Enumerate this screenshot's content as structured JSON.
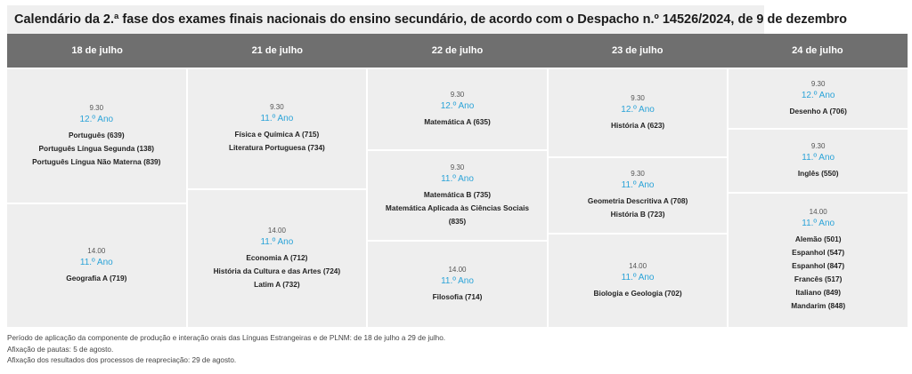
{
  "title": "Calendário da 2.ª fase dos exames finais nacionais do ensino secundário, de acordo com o Despacho n.º 14526/2024, de 9 de dezembro",
  "columns": [
    {
      "date": "18 de julho",
      "blocks": [
        {
          "time": "9.30",
          "year": "12.º Ano",
          "exams": [
            "Português (639)",
            "Português Língua Segunda (138)",
            "Português Língua Não Materna (839)"
          ]
        },
        {
          "time": "14.00",
          "year": "11.º Ano",
          "exams": [
            "Geografia A (719)"
          ]
        }
      ]
    },
    {
      "date": "21 de julho",
      "blocks": [
        {
          "time": "9.30",
          "year": "11.º Ano",
          "exams": [
            "Física e Química A (715)",
            "Literatura Portuguesa (734)"
          ]
        },
        {
          "time": "14.00",
          "year": "11.º Ano",
          "exams": [
            "Economia A (712)",
            "História da Cultura e das Artes (724)",
            "Latim A (732)"
          ]
        }
      ]
    },
    {
      "date": "22 de julho",
      "blocks": [
        {
          "time": "9.30",
          "year": "12.º Ano",
          "exams": [
            "Matemática A (635)"
          ]
        },
        {
          "time": "9.30",
          "year": "11.º Ano",
          "exams": [
            "Matemática B (735)",
            "Matemática Aplicada às Ciências Sociais",
            "(835)"
          ]
        },
        {
          "time": "14.00",
          "year": "11.º Ano",
          "exams": [
            "Filosofia (714)"
          ]
        }
      ]
    },
    {
      "date": "23 de julho",
      "blocks": [
        {
          "time": "9.30",
          "year": "12.º Ano",
          "exams": [
            "História A (623)"
          ]
        },
        {
          "time": "9.30",
          "year": "11.º Ano",
          "exams": [
            "Geometria Descritiva A (708)",
            "História B (723)"
          ]
        },
        {
          "time": "14.00",
          "year": "11.º Ano",
          "exams": [
            "Biologia e Geologia (702)"
          ]
        }
      ]
    },
    {
      "date": "24 de julho",
      "blocks": [
        {
          "time": "9.30",
          "year": "12.º Ano",
          "exams": [
            "Desenho A (706)"
          ]
        },
        {
          "time": "9.30",
          "year": "11.º Ano",
          "exams": [
            "Inglês (550)"
          ]
        },
        {
          "time": "14.00",
          "year": "11.º Ano",
          "exams": [
            "Alemão (501)",
            "Espanhol (547)",
            "Espanhol (847)",
            "Francês (517)",
            "Italiano (849)",
            "Mandarim (848)"
          ]
        }
      ]
    }
  ],
  "footer": [
    "Período de aplicação da componente de produção e interação orais das Línguas Estrangeiras e de PLNM: de 18 de julho a 29 de julho.",
    "Afixação de pautas: 5 de agosto.",
    "Afixação dos resultados dos processos de reapreciação: 29 de agosto."
  ],
  "colors": {
    "header_bg": "#6f6f6f",
    "cell_bg": "#eeeeee",
    "year_accent": "#2aa3d8"
  }
}
